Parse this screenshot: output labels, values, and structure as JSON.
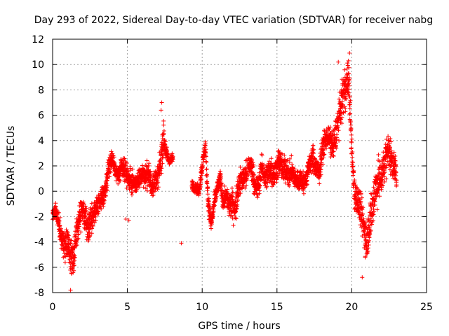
{
  "chart_data": {
    "type": "scatter",
    "title": "Day 293 of 2022, Sidereal Day-to-day VTEC variation (SDTVAR) for receiver nabg",
    "xlabel": "GPS time / hours",
    "ylabel": "SDTVAR / TECUs",
    "xlim": [
      0,
      25
    ],
    "ylim": [
      -8,
      12
    ],
    "xticks": [
      "0",
      "5",
      "10",
      "15",
      "20",
      "25"
    ],
    "yticks": [
      "-8",
      "-6",
      "-4",
      "-2",
      "0",
      "2",
      "4",
      "6",
      "8",
      "10",
      "12"
    ],
    "grid": true,
    "marker": "plus",
    "series": [
      {
        "name": "SDTVAR",
        "color": "#ff0000",
        "trend": {
          "x": [
            0.0,
            0.2,
            0.4,
            0.6,
            0.8,
            1.0,
            1.2,
            1.4,
            1.6,
            1.8,
            2.0,
            2.2,
            2.4,
            2.6,
            2.8,
            3.0,
            3.2,
            3.4,
            3.6,
            3.8,
            4.0,
            4.2,
            4.4,
            4.6,
            4.8,
            5.0,
            5.2,
            5.4,
            5.6,
            5.8,
            6.0,
            6.2,
            6.4,
            6.6,
            6.8,
            7.0,
            7.2,
            7.4,
            7.6,
            7.8,
            8.0,
            9.4,
            9.6,
            9.8,
            10.0,
            10.2,
            10.4,
            10.6,
            10.8,
            11.0,
            11.2,
            11.4,
            11.6,
            11.8,
            12.0,
            12.2,
            12.4,
            12.6,
            12.8,
            13.0,
            13.2,
            13.4,
            13.6,
            13.8,
            14.0,
            14.2,
            14.4,
            14.6,
            14.8,
            15.0,
            15.2,
            15.4,
            15.6,
            15.8,
            16.0,
            16.2,
            16.4,
            16.6,
            16.8,
            17.0,
            17.2,
            17.4,
            17.6,
            17.8,
            18.0,
            18.2,
            18.4,
            18.6,
            18.8,
            19.0,
            19.2,
            19.4,
            19.6,
            19.8,
            20.0,
            20.2,
            20.4,
            20.6,
            20.8,
            21.0,
            21.2,
            21.4,
            21.6,
            21.8,
            22.0,
            22.2,
            22.4,
            22.6,
            22.8,
            23.0
          ],
          "y": [
            -1.8,
            -1.6,
            -2.4,
            -3.6,
            -4.6,
            -4.0,
            -5.0,
            -5.6,
            -3.2,
            -1.8,
            -1.2,
            -2.4,
            -3.0,
            -2.0,
            -1.6,
            -1.0,
            -0.6,
            -0.4,
            0.6,
            2.2,
            2.6,
            1.6,
            1.2,
            1.8,
            1.6,
            1.2,
            0.8,
            0.6,
            0.6,
            1.0,
            1.4,
            1.2,
            1.4,
            0.4,
            0.8,
            1.0,
            2.0,
            4.2,
            3.0,
            2.4,
            2.6,
            0.4,
            0.2,
            0.0,
            2.0,
            3.6,
            -0.8,
            -2.6,
            -1.0,
            0.2,
            1.0,
            -0.8,
            -0.2,
            -1.2,
            -1.0,
            -1.6,
            0.4,
            0.8,
            1.2,
            1.4,
            2.2,
            1.4,
            0.0,
            0.6,
            2.0,
            1.0,
            1.4,
            1.8,
            1.2,
            2.0,
            2.4,
            1.6,
            1.8,
            1.2,
            1.6,
            1.0,
            0.8,
            1.0,
            0.6,
            1.2,
            2.2,
            2.6,
            1.8,
            1.4,
            3.0,
            4.0,
            4.4,
            3.8,
            3.6,
            5.0,
            6.2,
            7.4,
            8.2,
            9.0,
            3.0,
            -0.2,
            -0.8,
            -1.6,
            -2.8,
            -4.0,
            -2.4,
            -1.2,
            0.4,
            0.8,
            1.2,
            2.2,
            3.4,
            2.8,
            2.0,
            1.4
          ]
        },
        "spread": [
          0.6,
          0.9,
          1.1,
          1.6,
          1.8,
          1.9,
          1.9,
          1.8,
          1.8,
          1.9,
          1.7,
          1.6,
          1.5,
          1.6,
          1.4,
          1.2,
          1.2,
          1.2,
          1.4,
          1.3,
          1.0,
          1.0,
          1.0,
          1.2,
          1.2,
          1.4,
          1.2,
          1.2,
          1.0,
          1.2,
          1.2,
          1.2,
          1.6,
          1.4,
          1.2,
          1.2,
          1.6,
          2.0,
          0.9,
          0.5,
          0.5,
          0.6,
          0.6,
          0.6,
          0.8,
          1.0,
          1.2,
          1.0,
          1.0,
          1.0,
          1.0,
          1.2,
          1.0,
          1.6,
          1.6,
          1.6,
          1.6,
          1.4,
          1.4,
          1.4,
          1.6,
          1.4,
          1.4,
          1.4,
          1.4,
          1.4,
          1.6,
          1.6,
          1.6,
          1.6,
          1.6,
          1.6,
          1.4,
          1.4,
          1.4,
          1.2,
          1.2,
          1.2,
          1.2,
          1.2,
          1.2,
          1.6,
          1.4,
          1.4,
          1.4,
          1.4,
          1.2,
          1.6,
          1.8,
          1.8,
          2.0,
          2.2,
          2.2,
          2.0,
          2.0,
          1.8,
          1.8,
          2.0,
          2.2,
          2.2,
          2.4,
          2.4,
          2.4,
          2.4,
          2.2,
          2.0,
          2.0,
          2.0,
          1.8,
          1.6
        ],
        "isolated": [
          {
            "x": 8.6,
            "y": -4.1
          },
          {
            "x": 19.1,
            "y": 10.2
          },
          {
            "x": 19.85,
            "y": 10.9
          },
          {
            "x": 7.3,
            "y": 7.0
          },
          {
            "x": 7.25,
            "y": 6.4
          },
          {
            "x": 20.7,
            "y": -6.8
          },
          {
            "x": 1.2,
            "y": -7.8
          },
          {
            "x": 4.9,
            "y": -2.2
          },
          {
            "x": 5.1,
            "y": -2.3
          }
        ],
        "gaps": [
          [
            0.0,
            0.0
          ],
          [
            8.05,
            9.3
          ],
          [
            13.0,
            13.05
          ]
        ]
      }
    ]
  }
}
